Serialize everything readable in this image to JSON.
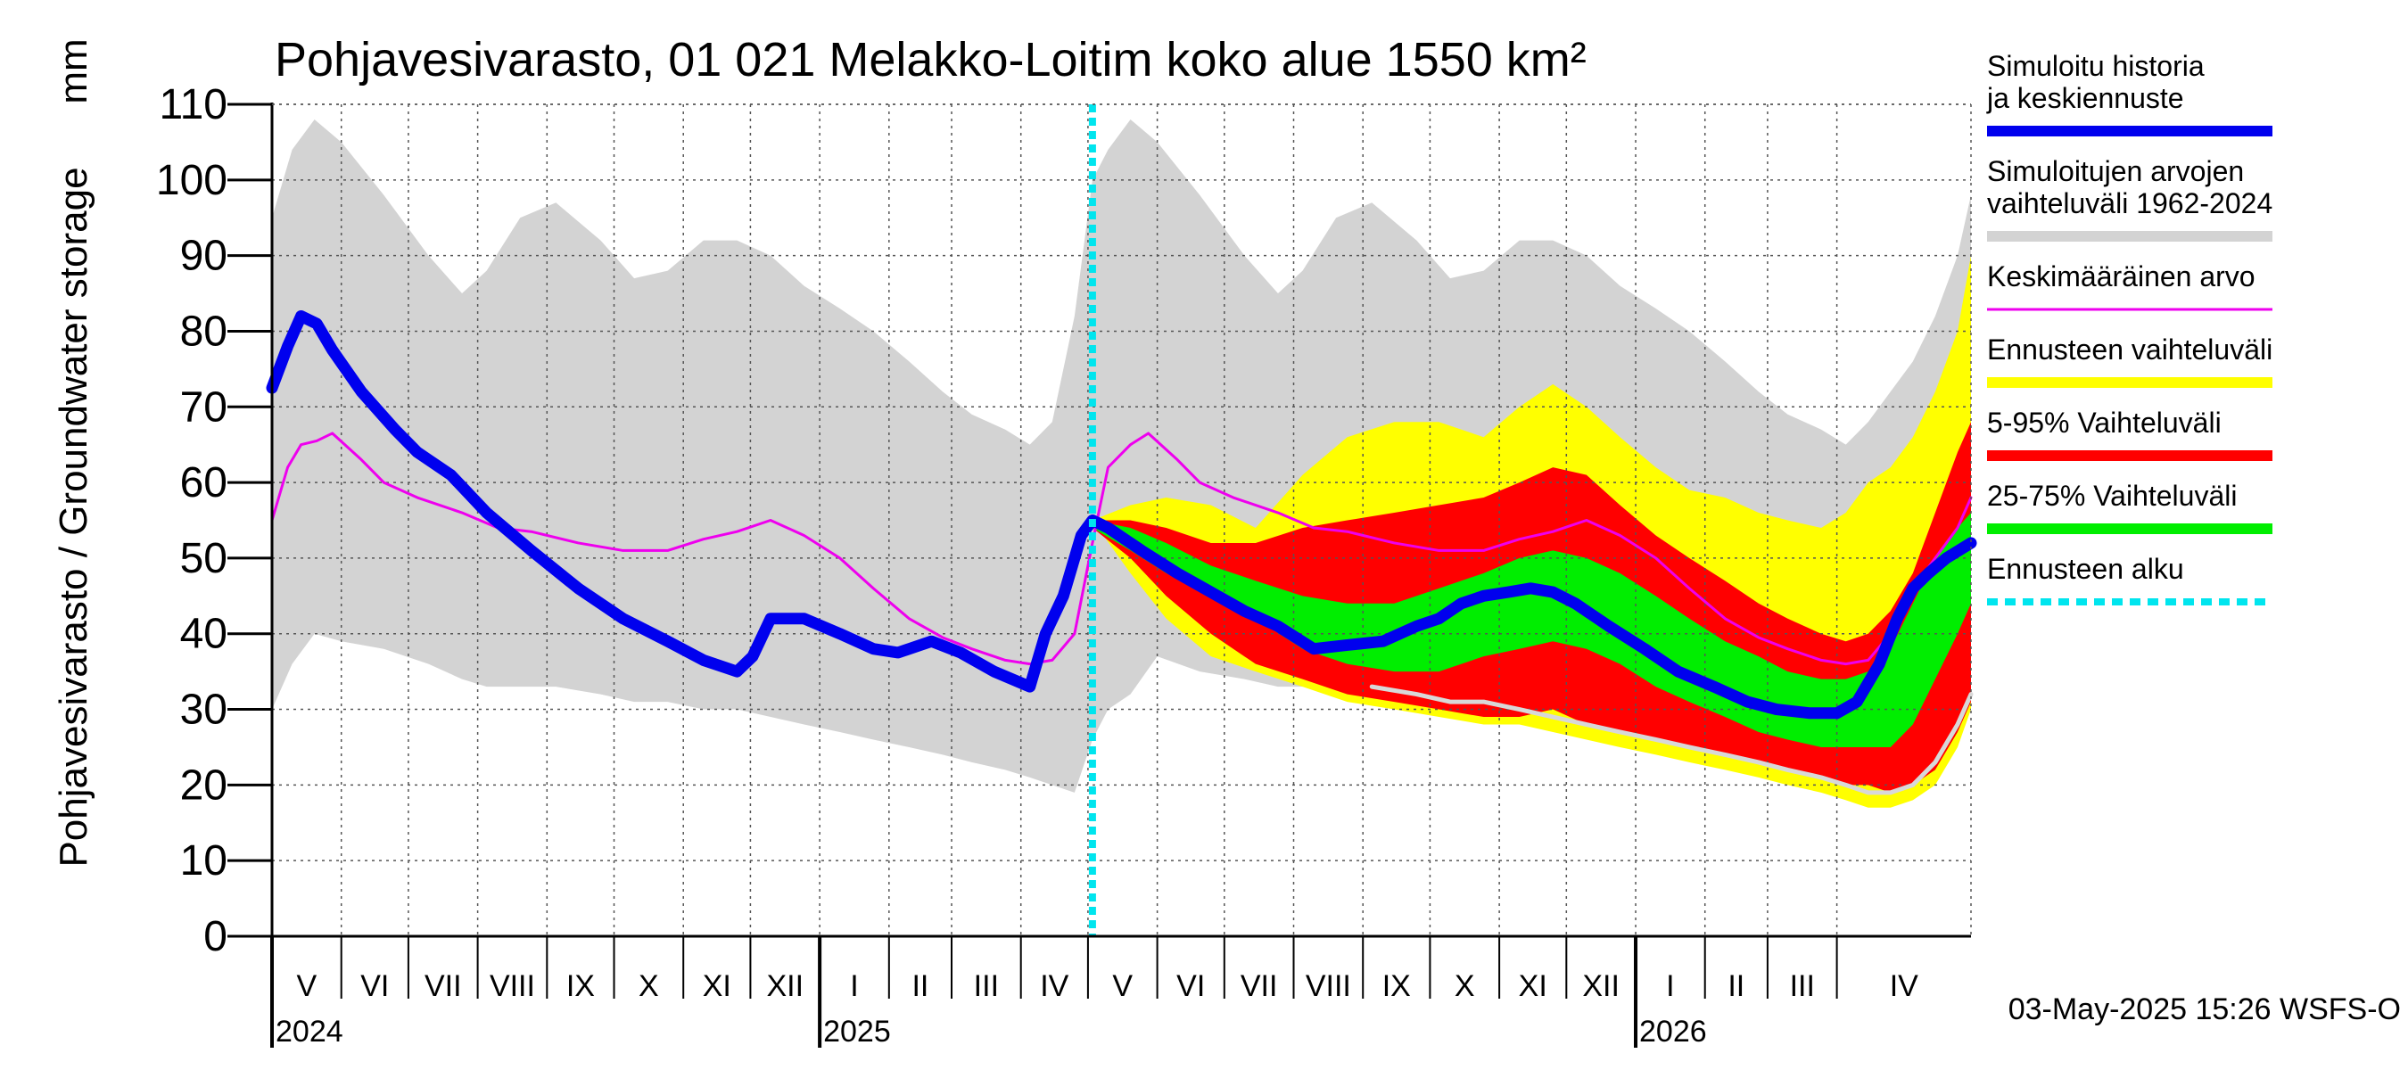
{
  "chart_data": {
    "type": "area",
    "title": "Pohjavesivarasto, 01 021 Melakko-Loitim koko alue 1550 km²",
    "ylabel": "Pohjavesivarasto / Groundwater storage",
    "yunit": "mm",
    "ylim": [
      0,
      110
    ],
    "yticks": [
      0,
      10,
      20,
      30,
      40,
      50,
      60,
      70,
      80,
      90,
      100,
      110
    ],
    "xrange": [
      "2024-05-01",
      "2026-05-31"
    ],
    "grid": true,
    "legend_position": "right",
    "month_labels": [
      "V",
      "VI",
      "VII",
      "VIII",
      "IX",
      "X",
      "XI",
      "XII",
      "I",
      "II",
      "III",
      "IV",
      "V",
      "VI",
      "VII",
      "VIII",
      "IX",
      "X",
      "XI",
      "XII",
      "I",
      "II",
      "III",
      "IV"
    ],
    "month_starts": [
      "2024-05-01",
      "2024-06-01",
      "2024-07-01",
      "2024-08-01",
      "2024-09-01",
      "2024-10-01",
      "2024-11-01",
      "2024-12-01",
      "2025-01-01",
      "2025-02-01",
      "2025-03-01",
      "2025-04-01",
      "2025-05-01",
      "2025-06-01",
      "2025-07-01",
      "2025-08-01",
      "2025-09-01",
      "2025-10-01",
      "2025-11-01",
      "2025-12-01",
      "2026-01-01",
      "2026-02-01",
      "2026-03-01",
      "2026-04-01"
    ],
    "year_labels": [
      {
        "label": "2024",
        "date": "2024-05-01"
      },
      {
        "label": "2025",
        "date": "2025-01-01"
      },
      {
        "label": "2026",
        "date": "2026-01-01"
      }
    ],
    "forecast_start": "2025-05-03",
    "timestamp": "03-May-2025 15:26 WSFS-O",
    "colors": {
      "history": "#0000ee",
      "range_1962_2024": "#d3d3d3",
      "mean": "#ee00ee",
      "forecast_range": "#ffff00",
      "p5_95": "#ff0000",
      "p25_75": "#00ee00",
      "forecast_start": "#00e5ee",
      "min_line": "#d8d8d8"
    },
    "series": [
      {
        "name": "Simuloitu historia ja keskiennuste",
        "key": "history",
        "x": [
          "2024-05-01",
          "2024-05-08",
          "2024-05-14",
          "2024-05-21",
          "2024-05-28",
          "2024-06-10",
          "2024-06-25",
          "2024-07-05",
          "2024-07-20",
          "2024-08-05",
          "2024-08-25",
          "2024-09-15",
          "2024-10-05",
          "2024-10-25",
          "2024-11-10",
          "2024-11-20",
          "2024-11-25",
          "2024-12-02",
          "2024-12-10",
          "2024-12-25",
          "2025-01-10",
          "2025-01-25",
          "2025-02-05",
          "2025-02-20",
          "2025-03-05",
          "2025-03-20",
          "2025-04-01",
          "2025-04-05",
          "2025-04-12",
          "2025-04-20",
          "2025-04-28",
          "2025-05-03",
          "2025-05-10",
          "2025-05-25",
          "2025-06-10",
          "2025-06-25",
          "2025-07-10",
          "2025-07-25",
          "2025-08-10",
          "2025-08-25",
          "2025-09-10",
          "2025-09-25",
          "2025-10-05",
          "2025-10-15",
          "2025-10-25",
          "2025-11-05",
          "2025-11-15",
          "2025-11-25",
          "2025-12-05",
          "2025-12-20",
          "2026-01-05",
          "2026-01-20",
          "2026-02-05",
          "2026-02-20",
          "2026-03-05",
          "2026-03-20",
          "2026-04-01",
          "2026-04-10",
          "2026-04-20",
          "2026-04-28",
          "2026-05-05",
          "2026-05-12",
          "2026-05-20",
          "2026-05-31"
        ],
        "values": [
          72.5,
          78,
          82,
          81,
          77.5,
          72,
          67,
          64,
          61,
          56,
          51,
          46,
          42,
          39,
          36.5,
          35.5,
          35,
          37,
          42,
          42,
          40,
          38,
          37.5,
          39,
          37.5,
          35,
          33.5,
          33,
          40,
          45,
          53,
          55,
          54,
          51,
          48,
          45.5,
          43,
          41,
          38,
          38.5,
          39,
          41,
          42,
          44,
          45,
          45.5,
          46,
          45.5,
          44,
          41,
          38,
          35,
          33,
          31,
          30,
          29.5,
          29.5,
          31,
          36,
          42,
          46,
          48,
          50,
          52
        ]
      },
      {
        "name": "Keskimääräinen arvo",
        "key": "mean",
        "x": [
          "2024-05-01",
          "2024-05-08",
          "2024-05-14",
          "2024-05-21",
          "2024-05-28",
          "2024-06-10",
          "2024-06-20",
          "2024-07-05",
          "2024-07-25",
          "2024-08-10",
          "2024-08-25",
          "2024-09-15",
          "2024-10-05",
          "2024-10-25",
          "2024-11-10",
          "2024-11-25",
          "2024-12-10",
          "2024-12-25",
          "2025-01-10",
          "2025-01-25",
          "2025-02-10",
          "2025-02-25",
          "2025-03-10",
          "2025-03-25",
          "2025-04-05",
          "2025-04-15",
          "2025-04-25",
          "2025-05-03",
          "2025-05-10",
          "2025-05-20",
          "2025-05-28",
          "2025-06-10",
          "2025-06-20",
          "2025-07-05",
          "2025-07-25",
          "2025-08-10",
          "2025-08-25",
          "2025-09-15",
          "2025-10-05",
          "2025-10-25",
          "2025-11-10",
          "2025-11-25",
          "2025-12-10",
          "2025-12-25",
          "2026-01-10",
          "2026-01-25",
          "2026-02-10",
          "2026-02-25",
          "2026-03-10",
          "2026-03-25",
          "2026-04-05",
          "2026-04-15",
          "2026-04-25",
          "2026-05-05",
          "2026-05-15",
          "2026-05-25",
          "2026-05-31"
        ],
        "values": [
          55,
          62,
          65,
          65.5,
          66.5,
          63,
          60,
          58,
          56,
          54,
          53.5,
          52,
          51,
          51,
          52.5,
          53.5,
          55,
          53,
          50,
          46,
          42,
          39.5,
          38,
          36.5,
          36,
          36.5,
          40,
          52,
          62,
          65,
          66.5,
          63,
          60,
          58,
          56,
          54,
          53.5,
          52,
          51,
          51,
          52.5,
          53.5,
          55,
          53,
          50,
          46,
          42,
          39.5,
          38,
          36.5,
          36,
          36.5,
          40,
          46,
          50,
          54,
          58
        ]
      },
      {
        "name": "Simuloitujen arvojen vaihteluväli 1962-2024",
        "key": "range_1962_2024",
        "x": [
          "2024-05-01",
          "2024-05-10",
          "2024-05-20",
          "2024-06-01",
          "2024-06-20",
          "2024-07-10",
          "2024-07-25",
          "2024-08-05",
          "2024-08-20",
          "2024-09-05",
          "2024-09-25",
          "2024-10-10",
          "2024-10-25",
          "2024-11-10",
          "2024-11-25",
          "2024-12-10",
          "2024-12-25",
          "2025-01-10",
          "2025-01-25",
          "2025-02-10",
          "2025-02-25",
          "2025-03-10",
          "2025-03-25",
          "2025-04-05",
          "2025-04-15",
          "2025-04-25",
          "2025-05-03",
          "2025-05-10",
          "2025-05-20",
          "2025-06-01",
          "2025-06-20",
          "2025-07-10",
          "2025-07-25",
          "2025-08-05",
          "2025-08-20",
          "2025-09-05",
          "2025-09-25",
          "2025-10-10",
          "2025-10-25",
          "2025-11-10",
          "2025-11-25",
          "2025-12-10",
          "2025-12-25",
          "2026-01-10",
          "2026-01-25",
          "2026-02-10",
          "2026-02-25",
          "2026-03-10",
          "2026-03-25",
          "2026-04-05",
          "2026-04-15",
          "2026-04-25",
          "2026-05-05",
          "2026-05-15",
          "2026-05-25",
          "2026-05-31"
        ],
        "max": [
          95,
          104,
          108,
          105,
          98,
          90,
          85,
          88,
          95,
          97,
          92,
          87,
          88,
          92,
          92,
          90,
          86,
          83,
          80,
          76,
          72,
          69,
          67,
          65,
          68,
          82,
          100,
          104,
          108,
          105,
          98,
          90,
          85,
          88,
          95,
          97,
          92,
          87,
          88,
          92,
          92,
          90,
          86,
          83,
          80,
          76,
          72,
          69,
          67,
          65,
          68,
          72,
          76,
          82,
          90,
          98
        ],
        "min": [
          30,
          36,
          40,
          39,
          38,
          36,
          34,
          33,
          33,
          33,
          32,
          31,
          31,
          30,
          30,
          29,
          28,
          27,
          26,
          25,
          24,
          23,
          22,
          21,
          20,
          19,
          26,
          30,
          32,
          37,
          35,
          34,
          33,
          33,
          32,
          31,
          31,
          30,
          30,
          29,
          28,
          27,
          26,
          25,
          24,
          23,
          22,
          21,
          20,
          19,
          18,
          18,
          19,
          22,
          26,
          30
        ]
      },
      {
        "name": "Ennusteen vaihteluväli",
        "key": "forecast_range",
        "x": [
          "2025-05-03",
          "2025-05-20",
          "2025-06-05",
          "2025-06-25",
          "2025-07-15",
          "2025-08-05",
          "2025-08-25",
          "2025-09-15",
          "2025-10-05",
          "2025-10-25",
          "2025-11-10",
          "2025-11-25",
          "2025-12-10",
          "2025-12-25",
          "2026-01-10",
          "2026-01-25",
          "2026-02-10",
          "2026-02-25",
          "2026-03-10",
          "2026-03-25",
          "2026-04-05",
          "2026-04-15",
          "2026-04-25",
          "2026-05-05",
          "2026-05-15",
          "2026-05-25",
          "2026-05-31"
        ],
        "upper": [
          55,
          57,
          58,
          57,
          54,
          61,
          66,
          68,
          68,
          66,
          70,
          73,
          70,
          66,
          62,
          59,
          58,
          56,
          55,
          54,
          56,
          60,
          62,
          66,
          72,
          80,
          90
        ],
        "lower": [
          55,
          48,
          42,
          37,
          35,
          33,
          31,
          30,
          29,
          28,
          28,
          27,
          26,
          25,
          24,
          23,
          22,
          21,
          20,
          19,
          18,
          17,
          17,
          18,
          20,
          25,
          30
        ]
      },
      {
        "name": "5-95% Vaihteluväli",
        "key": "p5_95",
        "x": [
          "2025-05-03",
          "2025-05-20",
          "2025-06-05",
          "2025-06-25",
          "2025-07-15",
          "2025-08-05",
          "2025-08-25",
          "2025-09-15",
          "2025-10-05",
          "2025-10-25",
          "2025-11-10",
          "2025-11-25",
          "2025-12-10",
          "2025-12-25",
          "2026-01-10",
          "2026-01-25",
          "2026-02-10",
          "2026-02-25",
          "2026-03-10",
          "2026-03-25",
          "2026-04-05",
          "2026-04-15",
          "2026-04-25",
          "2026-05-05",
          "2026-05-15",
          "2026-05-25",
          "2026-05-31"
        ],
        "upper": [
          55,
          55,
          54,
          52,
          52,
          54,
          55,
          56,
          57,
          58,
          60,
          62,
          61,
          57,
          53,
          50,
          47,
          44,
          42,
          40,
          39,
          40,
          43,
          48,
          56,
          64,
          68
        ],
        "lower": [
          54,
          50,
          45,
          40,
          36,
          34,
          32,
          31,
          30,
          29,
          29,
          30,
          28,
          27,
          26,
          25,
          24,
          23,
          22,
          21,
          20,
          20,
          19,
          20,
          22,
          27,
          31
        ]
      },
      {
        "name": "25-75% Vaihteluväli",
        "key": "p25_75",
        "x": [
          "2025-05-03",
          "2025-05-20",
          "2025-06-05",
          "2025-06-25",
          "2025-07-15",
          "2025-08-05",
          "2025-08-25",
          "2025-09-15",
          "2025-10-05",
          "2025-10-25",
          "2025-11-10",
          "2025-11-25",
          "2025-12-10",
          "2025-12-25",
          "2026-01-10",
          "2026-01-25",
          "2026-02-10",
          "2026-02-25",
          "2026-03-10",
          "2026-03-25",
          "2026-04-05",
          "2026-04-15",
          "2026-04-25",
          "2026-05-05",
          "2026-05-15",
          "2026-05-25",
          "2026-05-31"
        ],
        "upper": [
          55,
          54,
          52,
          49,
          47,
          45,
          44,
          44,
          46,
          48,
          50,
          51,
          50,
          48,
          45,
          42,
          39,
          37,
          35,
          34,
          34,
          35,
          38,
          44,
          50,
          54,
          56
        ],
        "lower": [
          54,
          51,
          48,
          45,
          42,
          38,
          36,
          35,
          35,
          37,
          38,
          39,
          38,
          36,
          33,
          31,
          29,
          27,
          26,
          25,
          25,
          25,
          25,
          28,
          34,
          40,
          44
        ]
      },
      {
        "name": "Minimum simulated",
        "key": "min_line",
        "x": [
          "2025-09-05",
          "2025-09-25",
          "2025-10-10",
          "2025-10-25",
          "2025-11-10",
          "2025-11-25",
          "2025-12-10",
          "2025-12-25",
          "2026-01-10",
          "2026-01-25",
          "2026-02-10",
          "2026-02-25",
          "2026-03-10",
          "2026-03-25",
          "2026-04-05",
          "2026-04-15",
          "2026-04-25",
          "2026-05-05",
          "2026-05-15",
          "2026-05-25",
          "2026-05-31"
        ],
        "values": [
          33,
          32,
          31,
          31,
          30,
          29,
          28,
          27,
          26,
          25,
          24,
          23,
          22,
          21,
          20,
          19,
          19,
          20,
          23,
          28,
          32
        ]
      }
    ],
    "legend": [
      {
        "label": "Simuloitu historia ja keskiennuste",
        "color": "#0000ee",
        "style": "thick"
      },
      {
        "label": "Simuloitujen arvojen vaihteluväli 1962-2024",
        "color": "#d3d3d3",
        "style": "thick"
      },
      {
        "label": "Keskimääräinen arvo",
        "color": "#ee00ee",
        "style": "thin"
      },
      {
        "label": "Ennusteen vaihteluväli",
        "color": "#ffff00",
        "style": "thick"
      },
      {
        "label": "5-95% Vaihteluväli",
        "color": "#ff0000",
        "style": "thick"
      },
      {
        "label": "25-75% Vaihteluväli",
        "color": "#00ee00",
        "style": "thick"
      },
      {
        "label": "Ennusteen alku",
        "color": "#00e5ee",
        "style": "dashed"
      }
    ]
  }
}
